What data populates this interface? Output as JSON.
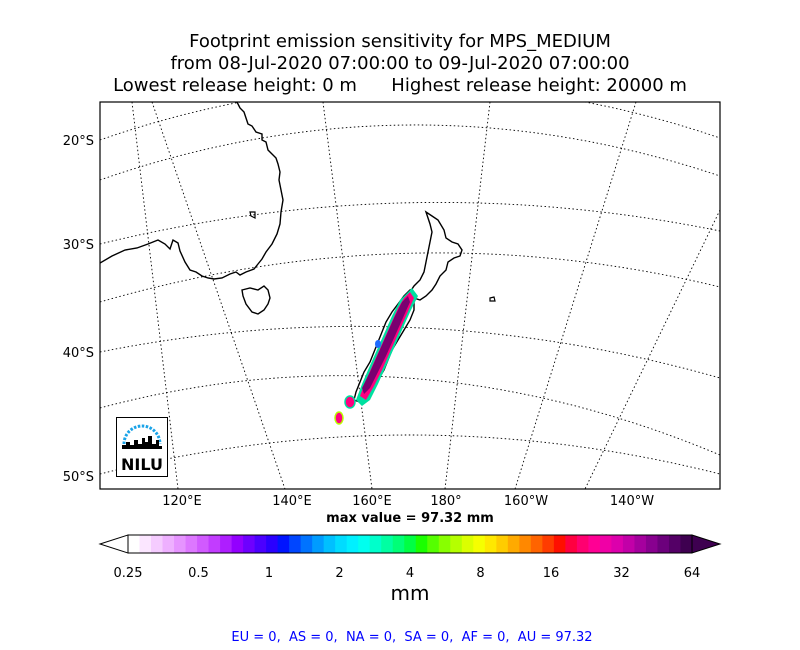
{
  "header": {
    "line1": "Footprint emission sensitivity for MPS_MEDIUM",
    "line2": "from 08-Jul-2020 07:00:00 to 09-Jul-2020 07:00:00",
    "line3": "Lowest release height: 0 m      Highest release height: 20000 m"
  },
  "map": {
    "lat_labels": [
      "20°S",
      "30°S",
      "40°S",
      "50°S"
    ],
    "lon_labels": [
      "120°E",
      "140°E",
      "160°E",
      "180°",
      "160°W",
      "140°W"
    ],
    "max_value": "max value = 97.32 mm",
    "logo_text": "NILU",
    "land_outline_color": "#000000",
    "graticule_color": "#000000",
    "plume_colors": [
      "#7a0070",
      "#c0008a",
      "#ff0080",
      "#1f6bff",
      "#00e0a0",
      "#b8ff00"
    ]
  },
  "colorbar": {
    "tick_labels": [
      "0.25",
      "0.5",
      "1",
      "2",
      "4",
      "8",
      "16",
      "32",
      "64"
    ],
    "unit": "mm",
    "colors": [
      "#ffffff",
      "#fbe6ff",
      "#f5ccff",
      "#eeb0ff",
      "#e694ff",
      "#dd77ff",
      "#d15aff",
      "#c23cff",
      "#ae1eff",
      "#9300ff",
      "#6e00ff",
      "#4b00ff",
      "#2a00ff",
      "#0014ff",
      "#0046ff",
      "#0073ff",
      "#009cff",
      "#00c0ff",
      "#00dcff",
      "#00f0ff",
      "#00ffef",
      "#00ffcb",
      "#00ffa2",
      "#00ff77",
      "#00ff44",
      "#1aff00",
      "#55ff00",
      "#88ff00",
      "#b5ff00",
      "#dbff00",
      "#f6ff00",
      "#ffe800",
      "#ffcc00",
      "#ffaa00",
      "#ff8800",
      "#ff6400",
      "#ff3c00",
      "#ff0f00",
      "#ff0040",
      "#ff0070",
      "#ff0094",
      "#f000a6",
      "#dc00ac",
      "#c200a8",
      "#a5009e",
      "#88008f",
      "#6c007c",
      "#540066",
      "#3e0050"
    ]
  },
  "footer": {
    "summary": "EU = 0,  AS = 0,  NA = 0,  SA = 0,  AF = 0,  AU = 97.32"
  }
}
